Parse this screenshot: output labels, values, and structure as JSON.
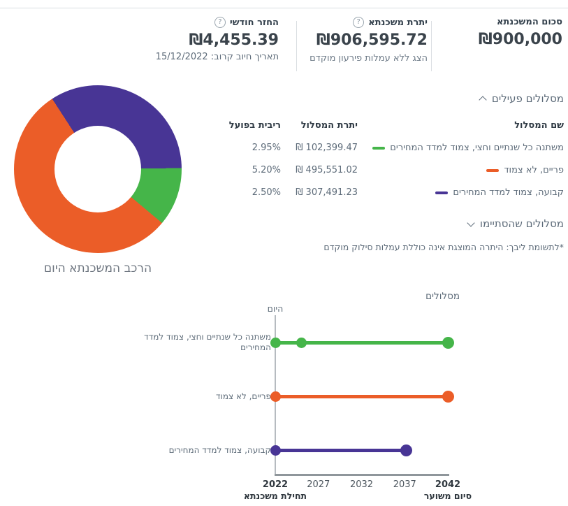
{
  "icons": {
    "help": "?"
  },
  "summary_cards": [
    {
      "title": "סכום המשכנתא",
      "value": "₪900,000"
    },
    {
      "title": "יתרת משכנתא",
      "value": "₪906,595.72",
      "link": "הצג ללא עמלות פירעון מוקדם"
    },
    {
      "title": "החזר חודשי",
      "value": "₪4,455.39",
      "subtitle": "תאריך חיוב קרוב: 15/12/2022"
    }
  ],
  "active_tracks": {
    "header": "מסלולים פעילים",
    "columns": {
      "name": "שם המסלול",
      "balance": "יתרת המסלול",
      "rate": "ריבית בפועל"
    },
    "rows": [
      {
        "name": "משתנה כל שנתיים וחצי, צמוד למדד המחירים",
        "balance": "₪ 102,399.47",
        "rate": "2.95%",
        "color": "#45b549"
      },
      {
        "name": "פריים, לא צמוד",
        "balance": "₪ 495,551.02",
        "rate": "5.20%",
        "color": "#eb5d28"
      },
      {
        "name": "קבועה, צמוד למדד המחירים",
        "balance": "₪ 307,491.23",
        "rate": "2.50%",
        "color": "#483595"
      }
    ]
  },
  "finished_tracks": {
    "header": "מסלולים שהסתיימו"
  },
  "note": "*לתשומת ליבך: היתרה המוצגת אינה כוללת עמלות סילוק מוקדם",
  "chart_data": [
    {
      "id": "donut",
      "type": "pie",
      "title": "הרכב המשכנתא היום",
      "start_angle_deg": -33,
      "segments": [
        {
          "label": "קבועה, צמוד למדד המחירים",
          "value": 307491.23,
          "color": "#483595"
        },
        {
          "label": "משתנה כל שנתיים וחצי, צמוד למדד המחירים",
          "value": 102399.47,
          "color": "#45b549"
        },
        {
          "label": "פריים, לא צמוד",
          "value": 495551.02,
          "color": "#eb5d28"
        }
      ]
    },
    {
      "id": "timeline",
      "type": "line",
      "title": "מסלולים",
      "today_label": "היום",
      "x_range": [
        2022,
        2042
      ],
      "x_ticks": [
        "2022",
        "2027",
        "2032",
        "2037",
        "2042"
      ],
      "start_axis_label": "תחילת משכנתא",
      "end_axis_label": "סיום משוער",
      "series": [
        {
          "name": "משתנה כל שנתיים וחצי, צמוד למדד המחירים",
          "color": "#45b549",
          "start": 2022,
          "end": 2042,
          "markers": [
            2022,
            2025,
            2042
          ]
        },
        {
          "name": "פריים, לא צמוד",
          "color": "#eb5d28",
          "start": 2022,
          "end": 2042,
          "markers": [
            2022,
            2042
          ]
        },
        {
          "name": "קבועה, צמוד למדד המחירים",
          "color": "#483595",
          "start": 2022,
          "end": 2037.2,
          "markers": [
            2022,
            2037.2
          ]
        }
      ]
    }
  ]
}
